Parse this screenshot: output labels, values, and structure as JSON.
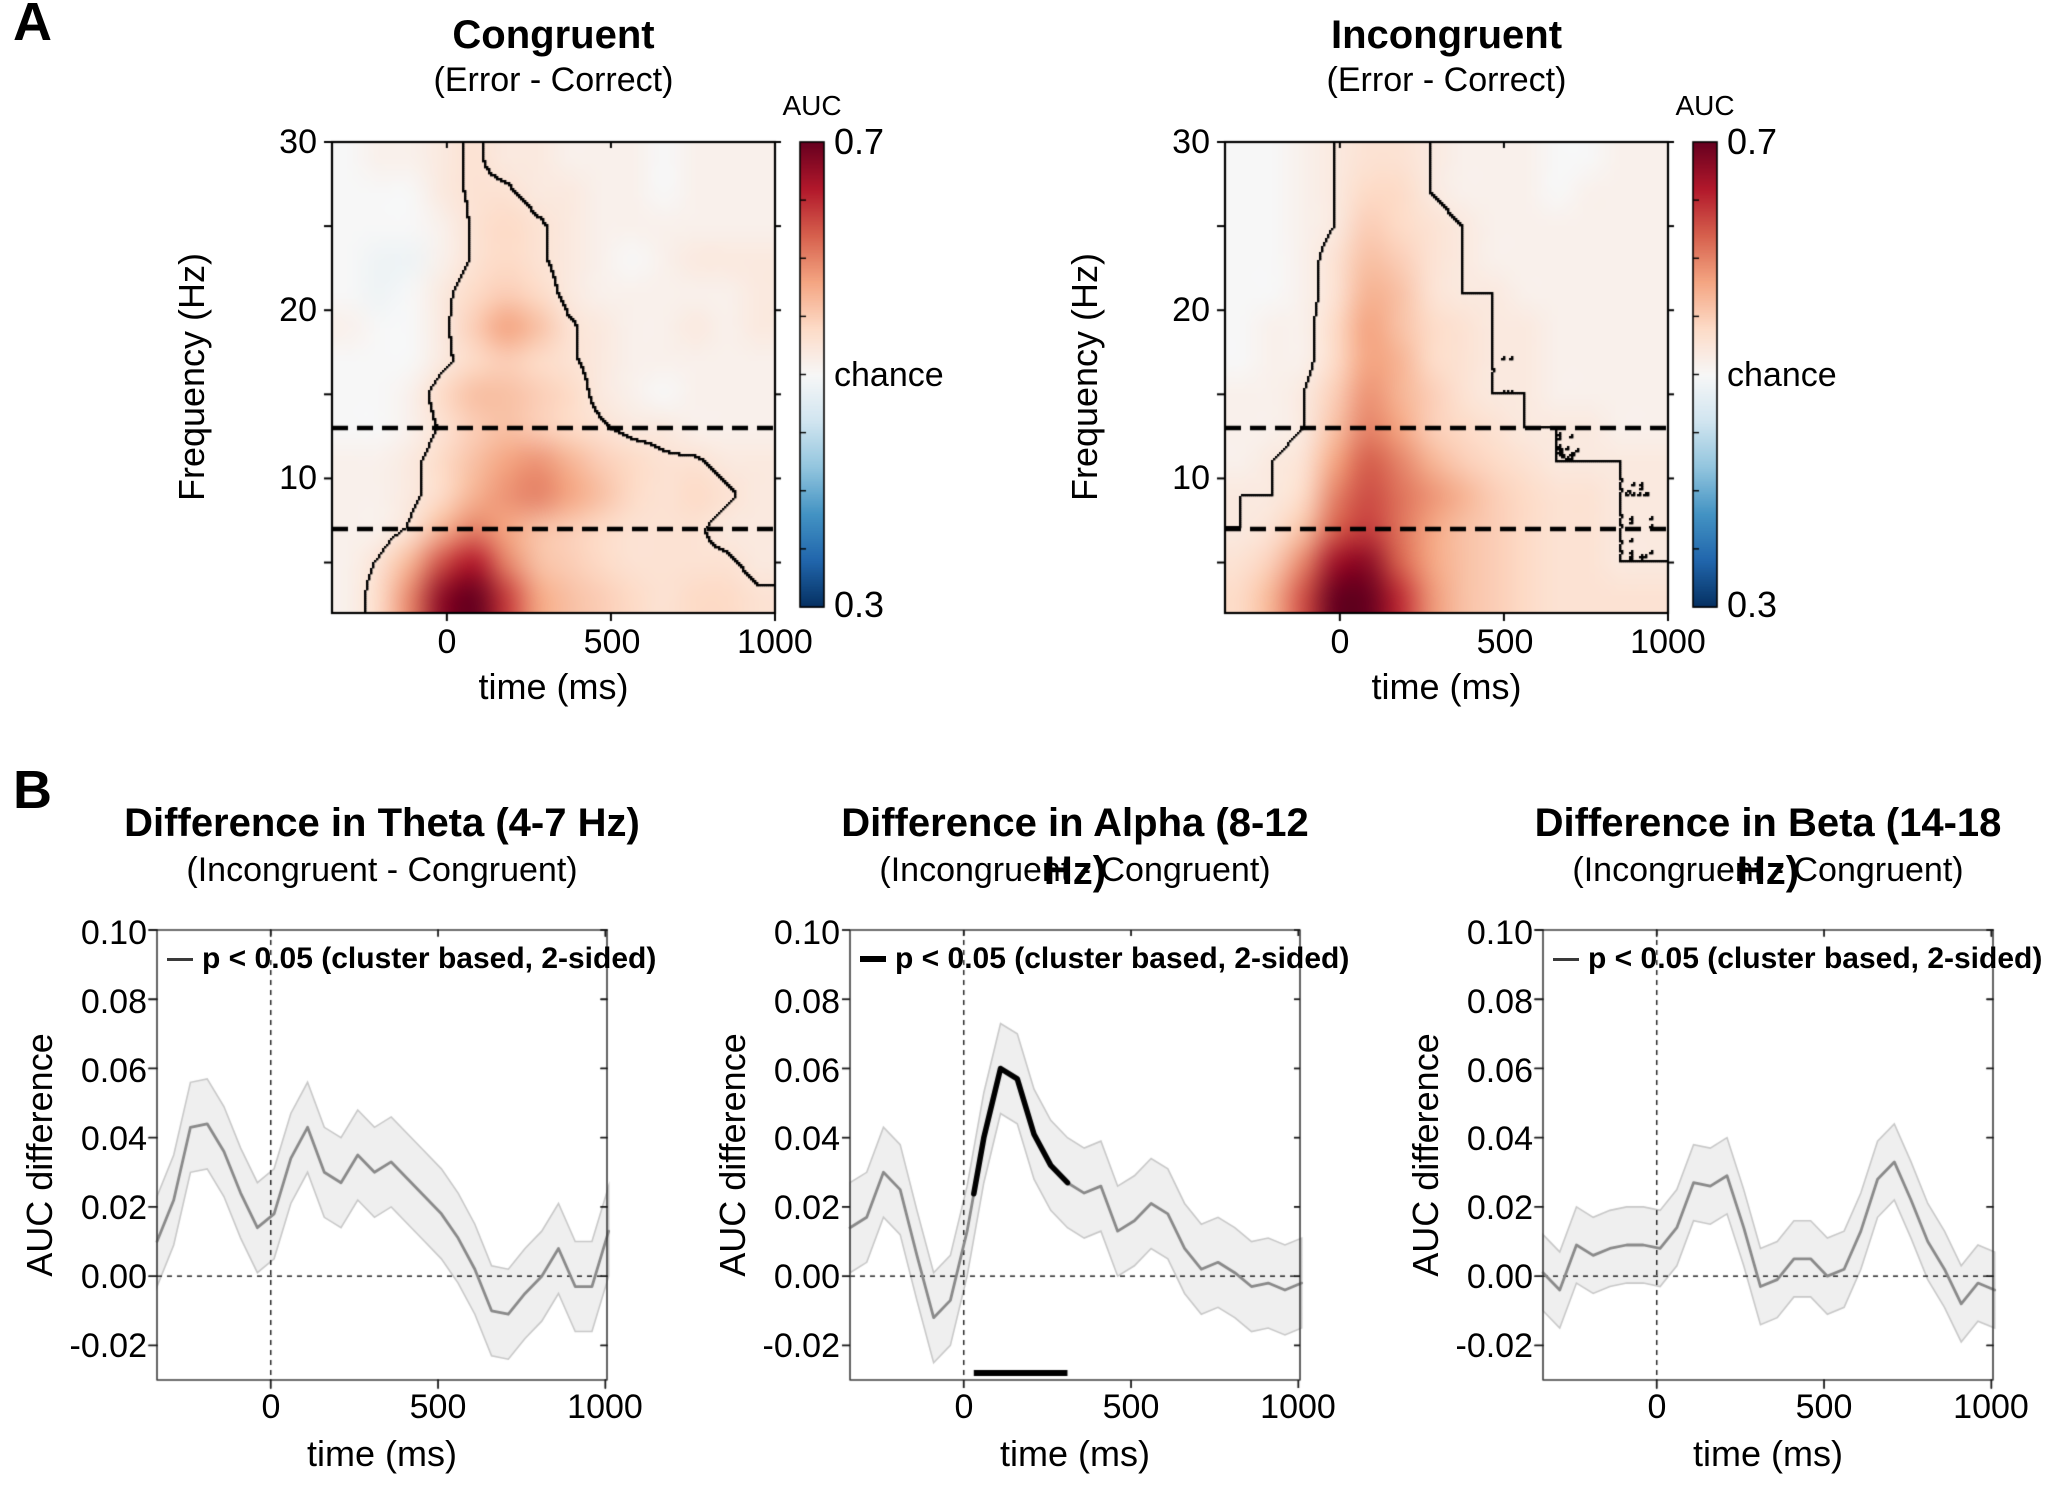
{
  "figure": {
    "panel_a_label": "A",
    "panel_b_label": "B",
    "background": "#ffffff",
    "accent_colors": {
      "heat_max_red": "#67001f",
      "heat_min_blue": "#053061",
      "mean_line_gray": "#8a8a8a",
      "band_fill": "#efefef",
      "significance_black": "#000000"
    }
  },
  "chart_data": [
    {
      "id": "congruent-heatmap",
      "type": "heatmap",
      "title": "Congruent",
      "subtitle": "(Error - Correct)",
      "xlabel": "time (ms)",
      "ylabel": "Frequency (Hz)",
      "xticks": [
        "0",
        "500",
        "1000"
      ],
      "xtick_values": [
        0,
        500,
        1000
      ],
      "yticks": [
        "30",
        "20",
        "10"
      ],
      "ytick_values": [
        30,
        20,
        10
      ],
      "minor_ytick_values": [
        25,
        15,
        5
      ],
      "x_range": [
        -350,
        1000
      ],
      "y_range": [
        2,
        30
      ],
      "grid": false,
      "colorbar": {
        "title": "AUC",
        "max": "0.7",
        "mid": "chance",
        "min": "0.3",
        "vmin": 0.3,
        "vmax": 0.7
      },
      "dashed_freq_lines_hz": [
        7,
        13
      ],
      "contour_threshold": 0.527,
      "times": [
        -300,
        -200,
        -100,
        0,
        100,
        200,
        300,
        400,
        500,
        600,
        700,
        800,
        900,
        1000
      ],
      "freqs": [
        4,
        6,
        8,
        10,
        12,
        14,
        16,
        18,
        20,
        22,
        24,
        26,
        28,
        30
      ],
      "values": [
        [
          0.51,
          0.54,
          0.6,
          0.68,
          0.7,
          0.64,
          0.58,
          0.56,
          0.55,
          0.54,
          0.53,
          0.54,
          0.54,
          0.53
        ],
        [
          0.51,
          0.53,
          0.57,
          0.63,
          0.66,
          0.6,
          0.56,
          0.55,
          0.54,
          0.53,
          0.53,
          0.53,
          0.53,
          0.52
        ],
        [
          0.51,
          0.51,
          0.53,
          0.57,
          0.6,
          0.58,
          0.56,
          0.55,
          0.54,
          0.53,
          0.53,
          0.53,
          0.52,
          0.52
        ],
        [
          0.51,
          0.51,
          0.52,
          0.54,
          0.57,
          0.59,
          0.6,
          0.58,
          0.56,
          0.54,
          0.53,
          0.54,
          0.53,
          0.52
        ],
        [
          0.51,
          0.51,
          0.52,
          0.54,
          0.56,
          0.58,
          0.59,
          0.57,
          0.55,
          0.54,
          0.53,
          0.53,
          0.52,
          0.52
        ],
        [
          0.5,
          0.5,
          0.51,
          0.53,
          0.55,
          0.56,
          0.55,
          0.54,
          0.53,
          0.52,
          0.52,
          0.51,
          0.51,
          0.51
        ],
        [
          0.5,
          0.5,
          0.51,
          0.54,
          0.56,
          0.56,
          0.55,
          0.54,
          0.52,
          0.51,
          0.5,
          0.51,
          0.51,
          0.51
        ],
        [
          0.5,
          0.5,
          0.5,
          0.52,
          0.54,
          0.55,
          0.54,
          0.53,
          0.52,
          0.51,
          0.51,
          0.51,
          0.51,
          0.51
        ],
        [
          0.51,
          0.5,
          0.5,
          0.52,
          0.55,
          0.58,
          0.56,
          0.53,
          0.52,
          0.51,
          0.51,
          0.52,
          0.51,
          0.52
        ],
        [
          0.5,
          0.49,
          0.5,
          0.52,
          0.54,
          0.55,
          0.54,
          0.52,
          0.51,
          0.51,
          0.51,
          0.51,
          0.51,
          0.52
        ],
        [
          0.5,
          0.49,
          0.49,
          0.51,
          0.53,
          0.54,
          0.53,
          0.52,
          0.51,
          0.5,
          0.51,
          0.52,
          0.52,
          0.52
        ],
        [
          0.5,
          0.5,
          0.5,
          0.51,
          0.53,
          0.54,
          0.53,
          0.52,
          0.51,
          0.51,
          0.51,
          0.51,
          0.51,
          0.51
        ],
        [
          0.5,
          0.5,
          0.5,
          0.52,
          0.53,
          0.53,
          0.52,
          0.52,
          0.51,
          0.51,
          0.5,
          0.51,
          0.51,
          0.51
        ],
        [
          0.5,
          0.51,
          0.51,
          0.52,
          0.53,
          0.52,
          0.52,
          0.51,
          0.51,
          0.51,
          0.5,
          0.51,
          0.51,
          0.51
        ]
      ]
    },
    {
      "id": "incongruent-heatmap",
      "type": "heatmap",
      "title": "Incongruent",
      "subtitle": "(Error - Correct)",
      "xlabel": "time (ms)",
      "ylabel": "Frequency (Hz)",
      "xticks": [
        "0",
        "500",
        "1000"
      ],
      "xtick_values": [
        0,
        500,
        1000
      ],
      "yticks": [
        "30",
        "20",
        "10"
      ],
      "ytick_values": [
        30,
        20,
        10
      ],
      "minor_ytick_values": [
        25,
        15,
        5
      ],
      "x_range": [
        -350,
        1000
      ],
      "y_range": [
        2,
        30
      ],
      "grid": false,
      "colorbar": {
        "title": "AUC",
        "max": "0.7",
        "mid": "chance",
        "min": "0.3",
        "vmin": 0.3,
        "vmax": 0.7
      },
      "dashed_freq_lines_hz": [
        7,
        13
      ],
      "contour_threshold": 0.52,
      "times": [
        -300,
        -200,
        -100,
        0,
        100,
        200,
        300,
        400,
        500,
        600,
        700,
        800,
        900,
        1000
      ],
      "freqs": [
        4,
        6,
        8,
        10,
        12,
        14,
        16,
        18,
        20,
        22,
        24,
        26,
        28,
        30
      ],
      "values": [
        [
          0.54,
          0.57,
          0.63,
          0.7,
          0.7,
          0.65,
          0.59,
          0.56,
          0.55,
          0.54,
          0.53,
          0.53,
          0.53,
          0.53
        ],
        [
          0.53,
          0.55,
          0.6,
          0.67,
          0.68,
          0.62,
          0.58,
          0.56,
          0.55,
          0.54,
          0.53,
          0.53,
          0.52,
          0.52
        ],
        [
          0.52,
          0.53,
          0.56,
          0.62,
          0.64,
          0.61,
          0.58,
          0.56,
          0.55,
          0.54,
          0.53,
          0.53,
          0.52,
          0.52
        ],
        [
          0.52,
          0.52,
          0.54,
          0.6,
          0.63,
          0.61,
          0.59,
          0.57,
          0.55,
          0.54,
          0.53,
          0.53,
          0.52,
          0.52
        ],
        [
          0.51,
          0.52,
          0.53,
          0.58,
          0.62,
          0.6,
          0.57,
          0.55,
          0.54,
          0.53,
          0.52,
          0.52,
          0.52,
          0.52
        ],
        [
          0.51,
          0.51,
          0.52,
          0.56,
          0.6,
          0.58,
          0.55,
          0.54,
          0.53,
          0.52,
          0.52,
          0.52,
          0.51,
          0.51
        ],
        [
          0.51,
          0.51,
          0.52,
          0.55,
          0.59,
          0.57,
          0.55,
          0.53,
          0.52,
          0.52,
          0.51,
          0.51,
          0.51,
          0.51
        ],
        [
          0.5,
          0.51,
          0.51,
          0.54,
          0.58,
          0.57,
          0.54,
          0.53,
          0.52,
          0.52,
          0.51,
          0.51,
          0.51,
          0.51
        ],
        [
          0.5,
          0.51,
          0.51,
          0.54,
          0.58,
          0.56,
          0.54,
          0.53,
          0.52,
          0.52,
          0.51,
          0.51,
          0.51,
          0.51
        ],
        [
          0.5,
          0.5,
          0.51,
          0.53,
          0.57,
          0.56,
          0.53,
          0.52,
          0.52,
          0.51,
          0.51,
          0.51,
          0.51,
          0.51
        ],
        [
          0.5,
          0.5,
          0.51,
          0.53,
          0.56,
          0.55,
          0.53,
          0.52,
          0.51,
          0.51,
          0.51,
          0.51,
          0.51,
          0.51
        ],
        [
          0.5,
          0.5,
          0.51,
          0.52,
          0.55,
          0.54,
          0.53,
          0.52,
          0.51,
          0.51,
          0.51,
          0.51,
          0.51,
          0.51
        ],
        [
          0.5,
          0.5,
          0.51,
          0.52,
          0.54,
          0.54,
          0.52,
          0.51,
          0.51,
          0.51,
          0.5,
          0.51,
          0.51,
          0.51
        ],
        [
          0.5,
          0.5,
          0.51,
          0.52,
          0.53,
          0.53,
          0.52,
          0.51,
          0.51,
          0.51,
          0.5,
          0.5,
          0.51,
          0.51
        ]
      ]
    },
    {
      "id": "theta-difference",
      "type": "line",
      "title": "Difference in Theta (4-7 Hz)",
      "subtitle": "(Incongruent - Congruent)",
      "legend": "p < 0.05 (cluster based, 2-sided)",
      "legend_line_weight": "thin",
      "xlabel": "time (ms)",
      "ylabel": "AUC difference",
      "xticks": [
        "0",
        "500",
        "1000"
      ],
      "xtick_values": [
        0,
        500,
        1000
      ],
      "yticks": [
        "0.10",
        "0.08",
        "0.06",
        "0.04",
        "0.02",
        "0.00",
        "-0.02"
      ],
      "ytick_values": [
        0.1,
        0.08,
        0.06,
        0.04,
        0.02,
        0.0,
        -0.02
      ],
      "x_range": [
        -340,
        1005
      ],
      "y_range": [
        -0.03,
        0.1
      ],
      "x": [
        -340,
        -290,
        -240,
        -190,
        -140,
        -90,
        -40,
        10,
        60,
        110,
        160,
        210,
        260,
        310,
        360,
        410,
        460,
        510,
        560,
        610,
        660,
        710,
        760,
        810,
        860,
        910,
        960,
        1010
      ],
      "mean": [
        0.01,
        0.022,
        0.043,
        0.044,
        0.036,
        0.024,
        0.014,
        0.018,
        0.034,
        0.043,
        0.03,
        0.027,
        0.035,
        0.03,
        0.033,
        0.028,
        0.023,
        0.018,
        0.011,
        0.002,
        -0.01,
        -0.011,
        -0.005,
        0.0,
        0.008,
        -0.003,
        -0.003,
        0.013
      ],
      "band_halfwidth": 0.013,
      "sig_time_range": null,
      "sig_bar_y": null
    },
    {
      "id": "alpha-difference",
      "type": "line",
      "title": "Difference in Alpha (8-12 Hz)",
      "subtitle": "(Incongruent - Congruent)",
      "legend": "p < 0.05 (cluster based, 2-sided)",
      "legend_line_weight": "thick",
      "xlabel": "time (ms)",
      "ylabel": "AUC difference",
      "xticks": [
        "0",
        "500",
        "1000"
      ],
      "xtick_values": [
        0,
        500,
        1000
      ],
      "yticks": [
        "0.10",
        "0.08",
        "0.06",
        "0.04",
        "0.02",
        "0.00",
        "-0.02"
      ],
      "ytick_values": [
        0.1,
        0.08,
        0.06,
        0.04,
        0.02,
        0.0,
        -0.02
      ],
      "x_range": [
        -340,
        1005
      ],
      "y_range": [
        -0.03,
        0.1
      ],
      "x": [
        -340,
        -290,
        -240,
        -190,
        -140,
        -90,
        -40,
        10,
        60,
        110,
        160,
        210,
        260,
        310,
        360,
        410,
        460,
        510,
        560,
        610,
        660,
        710,
        760,
        810,
        860,
        910,
        960,
        1010
      ],
      "mean": [
        0.014,
        0.017,
        0.03,
        0.025,
        0.006,
        -0.012,
        -0.007,
        0.013,
        0.04,
        0.06,
        0.057,
        0.041,
        0.032,
        0.027,
        0.024,
        0.026,
        0.013,
        0.016,
        0.021,
        0.018,
        0.008,
        0.002,
        0.004,
        0.001,
        -0.003,
        -0.002,
        -0.004,
        -0.002
      ],
      "band_halfwidth": 0.013,
      "sig_time_range": [
        30,
        310
      ],
      "sig_bar_y": -0.028
    },
    {
      "id": "beta-difference",
      "type": "line",
      "title": "Difference in Beta (14-18 Hz)",
      "subtitle": "(Incongruent - Congruent)",
      "legend": "p < 0.05 (cluster based, 2-sided)",
      "legend_line_weight": "thin",
      "xlabel": "time (ms)",
      "ylabel": "AUC difference",
      "xticks": [
        "0",
        "500",
        "1000"
      ],
      "xtick_values": [
        0,
        500,
        1000
      ],
      "yticks": [
        "0.10",
        "0.08",
        "0.06",
        "0.04",
        "0.02",
        "0.00",
        "-0.02"
      ],
      "ytick_values": [
        0.1,
        0.08,
        0.06,
        0.04,
        0.02,
        0.0,
        -0.02
      ],
      "x_range": [
        -340,
        1005
      ],
      "y_range": [
        -0.03,
        0.1
      ],
      "x": [
        -340,
        -290,
        -240,
        -190,
        -140,
        -90,
        -40,
        10,
        60,
        110,
        160,
        210,
        260,
        310,
        360,
        410,
        460,
        510,
        560,
        610,
        660,
        710,
        760,
        810,
        860,
        910,
        960,
        1010
      ],
      "mean": [
        0.001,
        -0.004,
        0.009,
        0.006,
        0.008,
        0.009,
        0.009,
        0.008,
        0.014,
        0.027,
        0.026,
        0.029,
        0.014,
        -0.003,
        -0.001,
        0.005,
        0.005,
        0.0,
        0.002,
        0.013,
        0.028,
        0.033,
        0.022,
        0.01,
        0.002,
        -0.008,
        -0.002,
        -0.004
      ],
      "band_halfwidth": 0.011,
      "sig_time_range": null,
      "sig_bar_y": null
    }
  ]
}
